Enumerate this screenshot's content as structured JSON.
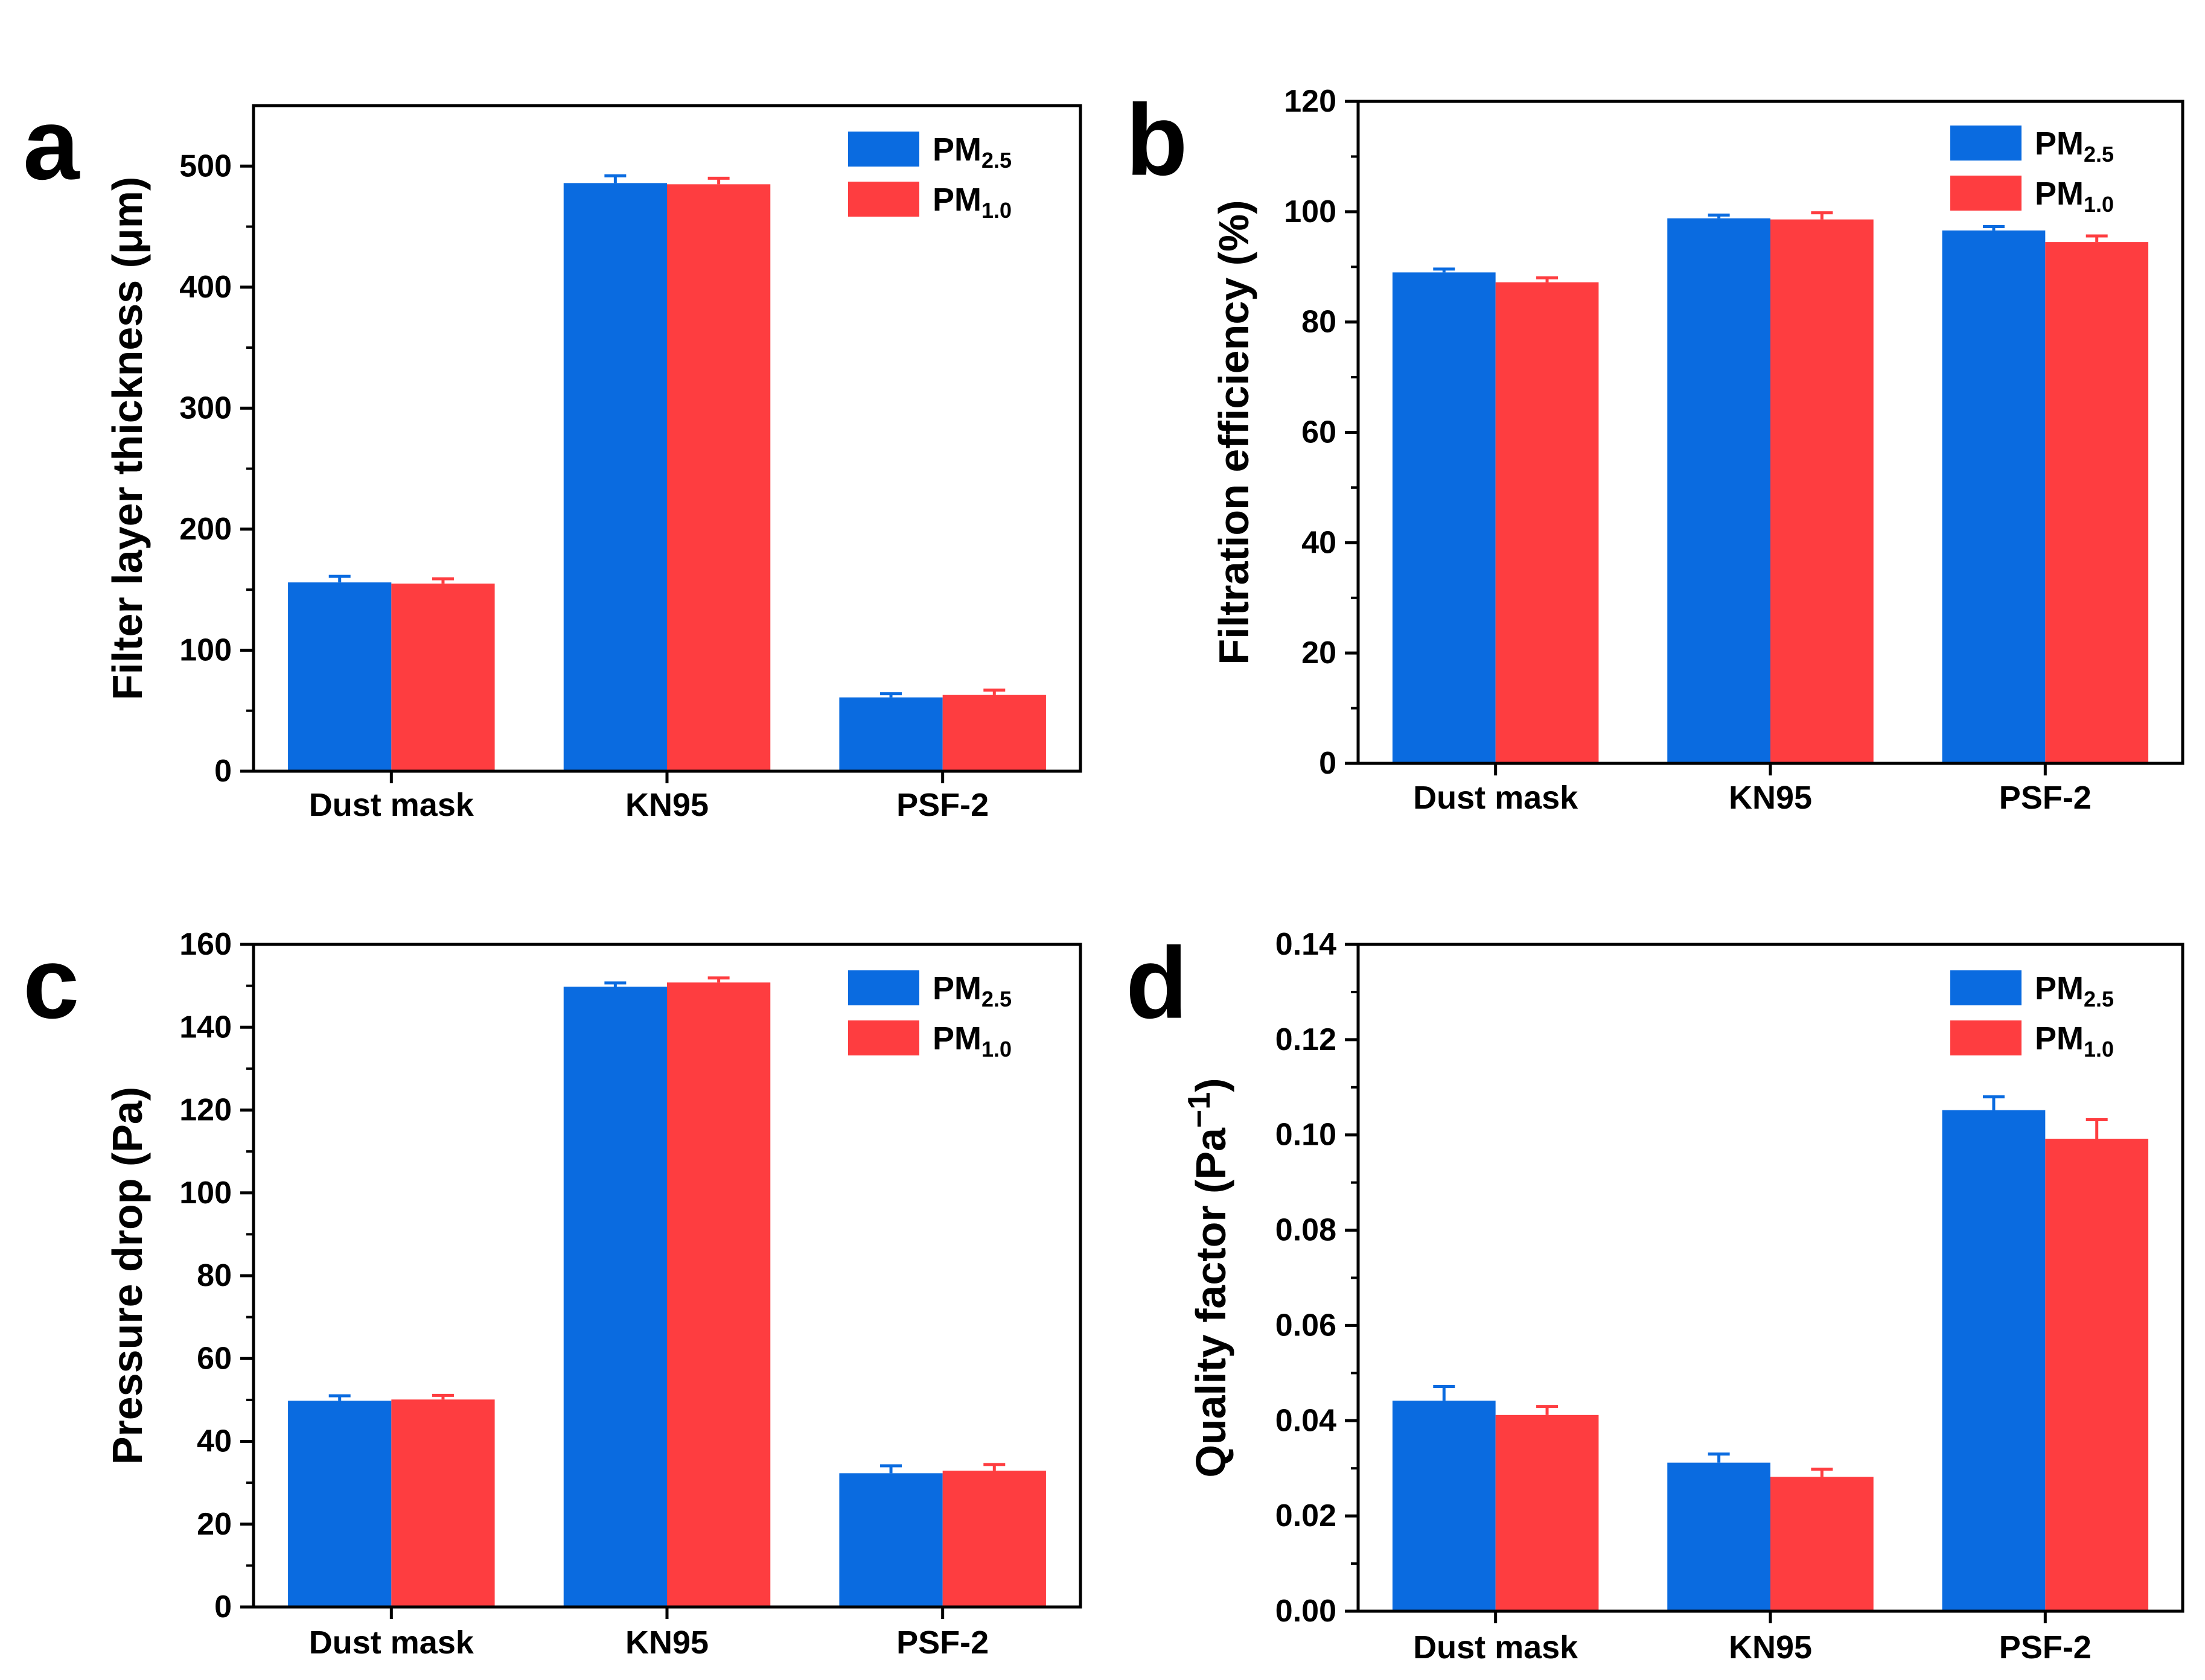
{
  "colors": {
    "pm25": "#0a6be0",
    "pm10": "#fe3d40",
    "axis": "#000000"
  },
  "chart_data": [
    {
      "panel": "a",
      "type": "bar",
      "categories": [
        "Dust mask",
        "KN95",
        "PSF-2"
      ],
      "ylabel": "Filter layer thickness (μm)",
      "ylim": [
        0,
        550
      ],
      "yticks": [
        "0",
        "100",
        "200",
        "300",
        "400",
        "500"
      ],
      "ytick_values": [
        0,
        100,
        200,
        300,
        400,
        500
      ],
      "legend": {
        "placement": "top-right",
        "entries": [
          {
            "base": "PM",
            "sub": "2.5"
          },
          {
            "base": "PM",
            "sub": "1.0"
          }
        ]
      },
      "series": [
        {
          "name": "PM2.5",
          "values": [
            156,
            486,
            61
          ],
          "errors": [
            5,
            6,
            3
          ]
        },
        {
          "name": "PM1.0",
          "values": [
            155,
            485,
            63
          ],
          "errors": [
            4,
            5,
            4
          ]
        }
      ]
    },
    {
      "panel": "b",
      "type": "bar",
      "categories": [
        "Dust mask",
        "KN95",
        "PSF-2"
      ],
      "ylabel": "Filtration efficiency (%)",
      "ylim": [
        0,
        120
      ],
      "yticks": [
        "0",
        "20",
        "40",
        "60",
        "80",
        "100",
        "120"
      ],
      "ytick_values": [
        0,
        20,
        40,
        60,
        80,
        100,
        120
      ],
      "legend": {
        "placement": "top-right",
        "entries": [
          {
            "base": "PM",
            "sub": "2.5"
          },
          {
            "base": "PM",
            "sub": "1.0"
          }
        ]
      },
      "series": [
        {
          "name": "PM2.5",
          "values": [
            89,
            98.8,
            96.6
          ],
          "errors": [
            0.6,
            0.6,
            0.7
          ]
        },
        {
          "name": "PM1.0",
          "values": [
            87.2,
            98.6,
            94.5
          ],
          "errors": [
            0.8,
            1.2,
            1.1
          ]
        }
      ]
    },
    {
      "panel": "c",
      "type": "bar",
      "categories": [
        "Dust mask",
        "KN95",
        "PSF-2"
      ],
      "ylabel": "Pressure drop (Pa)",
      "ylim": [
        0,
        160
      ],
      "yticks": [
        "0",
        "20",
        "40",
        "60",
        "80",
        "100",
        "120",
        "140",
        "160"
      ],
      "ytick_values": [
        0,
        20,
        40,
        60,
        80,
        100,
        120,
        140,
        160
      ],
      "legend": {
        "placement": "top-right",
        "entries": [
          {
            "base": "PM",
            "sub": "2.5"
          },
          {
            "base": "PM",
            "sub": "1.0"
          }
        ]
      },
      "series": [
        {
          "name": "PM2.5",
          "values": [
            49.8,
            149.8,
            32.3
          ],
          "errors": [
            1.2,
            0.9,
            1.8
          ]
        },
        {
          "name": "PM1.0",
          "values": [
            50.1,
            150.8,
            32.9
          ],
          "errors": [
            1,
            1.1,
            1.5
          ]
        }
      ]
    },
    {
      "panel": "d",
      "type": "bar",
      "categories": [
        "Dust mask",
        "KN95",
        "PSF-2"
      ],
      "ylabel": "Quality factor (Pa−1)",
      "ylabel_parts": {
        "main": "Quality factor (Pa",
        "sup": "−1",
        "close": ")"
      },
      "ylim": [
        0,
        0.14
      ],
      "yticks": [
        "0.00",
        "0.02",
        "0.04",
        "0.06",
        "0.08",
        "0.10",
        "0.12",
        "0.14"
      ],
      "ytick_values": [
        0,
        0.02,
        0.04,
        0.06,
        0.08,
        0.1,
        0.12,
        0.14
      ],
      "legend": {
        "placement": "top-right",
        "entries": [
          {
            "base": "PM",
            "sub": "2.5"
          },
          {
            "base": "PM",
            "sub": "1.0"
          }
        ]
      },
      "series": [
        {
          "name": "PM2.5",
          "values": [
            0.0442,
            0.0312,
            0.1052
          ],
          "errors": [
            0.003,
            0.0018,
            0.0028
          ]
        },
        {
          "name": "PM1.0",
          "values": [
            0.0412,
            0.0282,
            0.0992
          ],
          "errors": [
            0.0018,
            0.0016,
            0.004
          ]
        }
      ]
    }
  ]
}
